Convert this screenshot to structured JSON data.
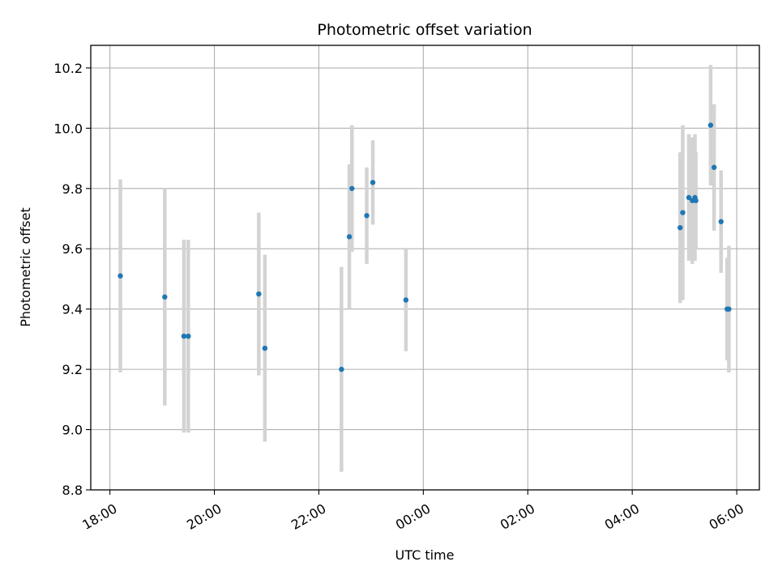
{
  "chart_data": {
    "type": "scatter",
    "title": "Photometric offset variation",
    "xlabel": "UTC time",
    "ylabel": "Photometric offset",
    "x_axis": {
      "kind": "time",
      "start": "18:00",
      "ticks": [
        "18:00",
        "20:00",
        "22:00",
        "00:00",
        "02:00",
        "04:00",
        "06:00"
      ],
      "range": [
        "17:38",
        "06:26"
      ]
    },
    "y_axis": {
      "ticks": [
        "8.8",
        "9.0",
        "9.2",
        "9.4",
        "9.6",
        "9.8",
        "10.0",
        "10.2"
      ],
      "range": [
        8.8,
        10.275
      ]
    },
    "grid": true,
    "colors": {
      "marker": "#1f77b4",
      "errorbar": "#d3d3d3",
      "grid": "#b0b0b0",
      "axes": "#000000"
    },
    "points": [
      {
        "t": "18:12",
        "y": 9.51,
        "err": 0.32
      },
      {
        "t": "19:03",
        "y": 9.44,
        "err": 0.36
      },
      {
        "t": "19:25",
        "y": 9.31,
        "err": 0.32
      },
      {
        "t": "19:30",
        "y": 9.31,
        "err": 0.32
      },
      {
        "t": "20:51",
        "y": 9.45,
        "err": 0.27
      },
      {
        "t": "20:58",
        "y": 9.27,
        "err": 0.31
      },
      {
        "t": "22:26",
        "y": 9.2,
        "err": 0.34
      },
      {
        "t": "22:35",
        "y": 9.64,
        "err": 0.24
      },
      {
        "t": "22:38",
        "y": 9.8,
        "err": 0.21
      },
      {
        "t": "22:55",
        "y": 9.71,
        "err": 0.16
      },
      {
        "t": "23:02",
        "y": 9.82,
        "err": 0.14
      },
      {
        "t": "23:40",
        "y": 9.43,
        "err": 0.17
      },
      {
        "t": "04:55",
        "y": 9.67,
        "err": 0.25
      },
      {
        "t": "04:58",
        "y": 9.72,
        "err": 0.29
      },
      {
        "t": "05:05",
        "y": 9.77,
        "err": 0.21
      },
      {
        "t": "05:09",
        "y": 9.76,
        "err": 0.21
      },
      {
        "t": "05:12",
        "y": 9.77,
        "err": 0.21
      },
      {
        "t": "05:13",
        "y": 9.76,
        "err": 0.16
      },
      {
        "t": "05:30",
        "y": 10.01,
        "err": 0.2
      },
      {
        "t": "05:34",
        "y": 9.87,
        "err": 0.21
      },
      {
        "t": "05:42",
        "y": 9.69,
        "err": 0.17
      },
      {
        "t": "05:49",
        "y": 9.4,
        "err": 0.17
      },
      {
        "t": "05:51",
        "y": 9.4,
        "err": 0.21
      }
    ]
  }
}
